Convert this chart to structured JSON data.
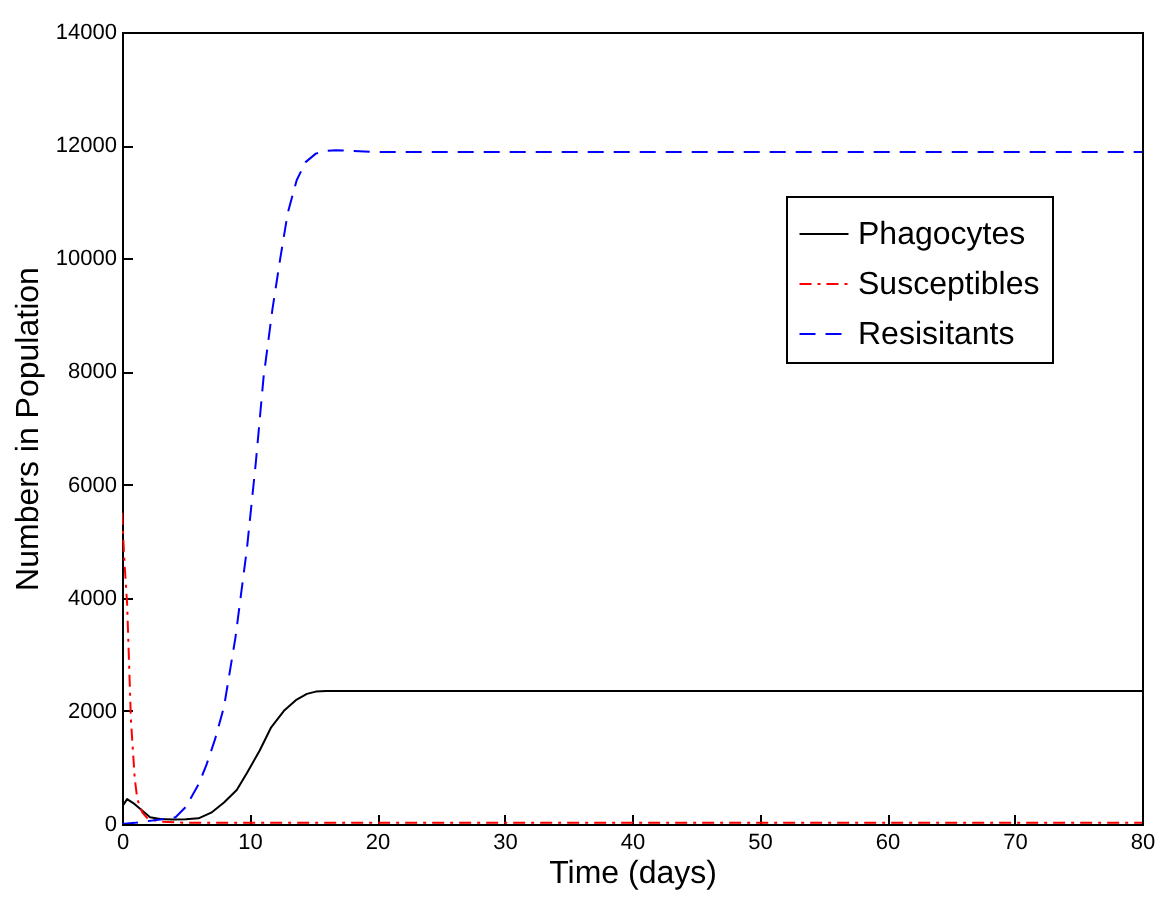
{
  "chart_data": {
    "type": "line",
    "xlabel": "Time (days)",
    "ylabel": "Numbers in Population",
    "xlim": [
      0,
      80
    ],
    "ylim": [
      0,
      14000
    ],
    "xticks": [
      0,
      10,
      20,
      30,
      40,
      50,
      60,
      70,
      80
    ],
    "yticks": [
      0,
      2000,
      4000,
      6000,
      8000,
      10000,
      12000,
      14000
    ],
    "grid": false,
    "legend": "top right",
    "marker": "none",
    "series": [
      {
        "name": "Phagocytes",
        "color": "#000000",
        "line_style": "solid",
        "x": [
          0,
          0.4,
          1,
          2.2,
          3,
          4,
          5,
          6,
          7,
          8,
          9,
          9.8,
          10.8,
          11.7,
          12.7,
          13.7,
          14.5,
          15.2,
          16,
          17,
          20,
          40,
          60,
          80
        ],
        "values": [
          300,
          440,
          350,
          120,
          90,
          80,
          85,
          100,
          200,
          380,
          600,
          900,
          1300,
          1710,
          2000,
          2200,
          2300,
          2340,
          2350,
          2350,
          2350,
          2350,
          2350,
          2350
        ]
      },
      {
        "name": "Susceptibles",
        "color": "#ff0000",
        "line_style": "dashdot",
        "x": [
          0,
          0.2,
          0.4,
          0.7,
          1,
          1.2,
          1.6,
          2,
          3,
          5,
          10,
          20,
          40,
          60,
          80
        ],
        "values": [
          5500,
          4600,
          3900,
          1840,
          800,
          440,
          200,
          100,
          40,
          20,
          20,
          20,
          20,
          20,
          20
        ]
      },
      {
        "name": "Resisitants",
        "color": "#0000ff",
        "line_style": "dashed",
        "x": [
          0,
          1,
          2,
          3,
          4.2,
          5,
          6,
          6.6,
          7.3,
          8,
          8.9,
          9.8,
          10.5,
          11.1,
          11.8,
          12.4,
          13,
          13.7,
          14.4,
          15.2,
          16,
          16.8,
          20,
          40,
          60,
          80
        ],
        "values": [
          0,
          20,
          50,
          80,
          120,
          300,
          700,
          1030,
          1500,
          2070,
          3300,
          4870,
          6400,
          7890,
          9100,
          9980,
          10800,
          11380,
          11700,
          11850,
          11900,
          11910,
          11880,
          11880,
          11880,
          11880
        ]
      }
    ]
  }
}
